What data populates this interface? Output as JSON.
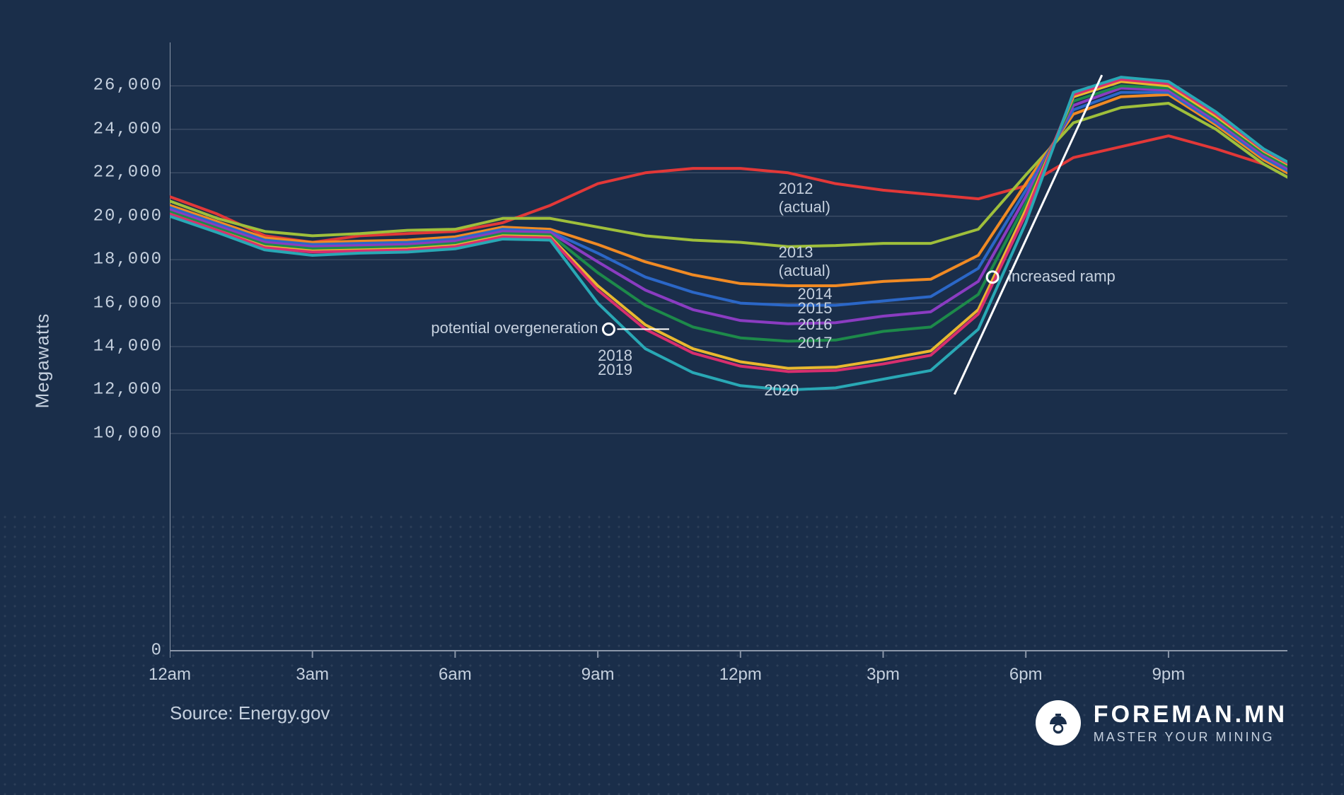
{
  "chart": {
    "type": "line",
    "background_color": "#1a2e4a",
    "grid_color": "#4a5a72",
    "axis_color": "#8a96a8",
    "text_color": "#c5d0de",
    "label_fontsize": 24,
    "tick_font": "monospace",
    "y_axis_label": "Megawatts",
    "ylim": [
      0,
      28000
    ],
    "y_ticks": [
      0,
      10000,
      12000,
      14000,
      16000,
      18000,
      20000,
      22000,
      24000,
      26000
    ],
    "y_tick_labels": [
      "0",
      "10,000",
      "12,000",
      "14,000",
      "16,000",
      "18,000",
      "20,000",
      "22,000",
      "24,000",
      "26,000"
    ],
    "x_ticks": [
      0,
      3,
      6,
      9,
      12,
      15,
      18,
      21
    ],
    "x_tick_labels": [
      "12am",
      "3am",
      "6am",
      "9am",
      "12pm",
      "3pm",
      "6pm",
      "9pm"
    ],
    "xlim": [
      0,
      23.5
    ],
    "line_width": 4,
    "series": [
      {
        "name": "2012",
        "label": "2012\n(actual)",
        "color": "#e23838",
        "label_hour": 12.8,
        "label_mw": 21300,
        "values": [
          20900,
          20100,
          19100,
          18800,
          19100,
          19200,
          19300,
          19700,
          20500,
          21500,
          22000,
          22200,
          22200,
          22000,
          21500,
          21200,
          21000,
          20800,
          21400,
          22700,
          23200,
          23700,
          23100,
          22400
        ]
      },
      {
        "name": "2013",
        "label": "2013\n(actual)",
        "color": "#9fbf3b",
        "label_hour": 12.8,
        "label_mw": 18350,
        "values": [
          20700,
          19900,
          19300,
          19100,
          19200,
          19350,
          19400,
          19900,
          19900,
          19500,
          19100,
          18900,
          18800,
          18600,
          18650,
          18750,
          18750,
          19400,
          21900,
          24300,
          25000,
          25200,
          24000,
          22400,
          21200
        ]
      },
      {
        "name": "2014",
        "label": "2014",
        "color": "#f08a24",
        "label_hour": 13.2,
        "label_mw": 16450,
        "values": [
          20500,
          19750,
          19000,
          18800,
          18850,
          18900,
          19050,
          19500,
          19400,
          18700,
          17900,
          17300,
          16900,
          16800,
          16800,
          17000,
          17100,
          18200,
          21500,
          24700,
          25500,
          25600,
          24200,
          22600,
          21400
        ]
      },
      {
        "name": "2015",
        "label": "2015",
        "color": "#2b67c7",
        "label_hour": 13.2,
        "label_mw": 15800,
        "values": [
          20400,
          19650,
          18900,
          18700,
          18750,
          18800,
          18950,
          19400,
          19300,
          18300,
          17200,
          16500,
          16000,
          15900,
          15900,
          16100,
          16300,
          17600,
          21200,
          24900,
          25700,
          25700,
          24300,
          22700,
          21500
        ]
      },
      {
        "name": "2016",
        "label": "2016",
        "color": "#8a3cc1",
        "label_hour": 13.2,
        "label_mw": 15050,
        "values": [
          20300,
          19550,
          18800,
          18600,
          18650,
          18700,
          18850,
          19300,
          19250,
          17900,
          16600,
          15700,
          15200,
          15050,
          15100,
          15400,
          15600,
          17000,
          20900,
          25100,
          25900,
          25800,
          24400,
          22800,
          21600
        ]
      },
      {
        "name": "2017",
        "label": "2017",
        "color": "#1d8a4a",
        "label_hour": 13.2,
        "label_mw": 14200,
        "values": [
          20200,
          19450,
          18700,
          18500,
          18550,
          18600,
          18750,
          19200,
          19150,
          17400,
          15900,
          14900,
          14400,
          14250,
          14300,
          14700,
          14900,
          16400,
          20600,
          25300,
          26000,
          25900,
          24500,
          22900,
          21700
        ]
      },
      {
        "name": "2018",
        "label": "2018",
        "color": "#e8b82f",
        "label_hour": 9.0,
        "label_mw": 13600,
        "values": [
          20100,
          19350,
          18600,
          18400,
          18450,
          18500,
          18650,
          19100,
          19050,
          16800,
          15000,
          13900,
          13300,
          13000,
          13050,
          13400,
          13800,
          15700,
          20300,
          25500,
          26200,
          26000,
          24600,
          23000,
          21800
        ]
      },
      {
        "name": "2019",
        "label": "2019",
        "color": "#d82f6e",
        "label_hour": 9.0,
        "label_mw": 12950,
        "values": [
          20100,
          19350,
          18550,
          18350,
          18400,
          18450,
          18600,
          19050,
          19000,
          16600,
          14800,
          13700,
          13100,
          12850,
          12900,
          13200,
          13600,
          15500,
          20100,
          25600,
          26300,
          26100,
          24700,
          23050,
          21850
        ]
      },
      {
        "name": "2020",
        "label": "2020",
        "color": "#29a8b5",
        "label_hour": 12.5,
        "label_mw": 12000,
        "values": [
          20000,
          19250,
          18450,
          18200,
          18300,
          18350,
          18500,
          18950,
          18900,
          16000,
          13900,
          12800,
          12200,
          12000,
          12100,
          12500,
          12900,
          14800,
          19700,
          25700,
          26400,
          26200,
          24800,
          23100,
          21900
        ]
      }
    ],
    "annotations": {
      "overgeneration": {
        "text": "potential overgeneration",
        "hour": 6.7,
        "mw": 14800,
        "line_to_hour": 10.5
      },
      "ramp": {
        "text": "increased ramp",
        "dot_hour": 17.3,
        "dot_mw": 17200,
        "line_from": {
          "hour": 16.5,
          "mw": 11800
        },
        "line_to": {
          "hour": 19.6,
          "mw": 26500
        }
      },
      "annot_color": "#ffffff",
      "annot_fontsize": 22
    },
    "source": "Source: Energy.gov"
  },
  "branding": {
    "name": "FOREMAN.MN",
    "tagline": "MASTER YOUR MINING",
    "icon": "hardhat-icon",
    "text_color": "#ffffff"
  }
}
